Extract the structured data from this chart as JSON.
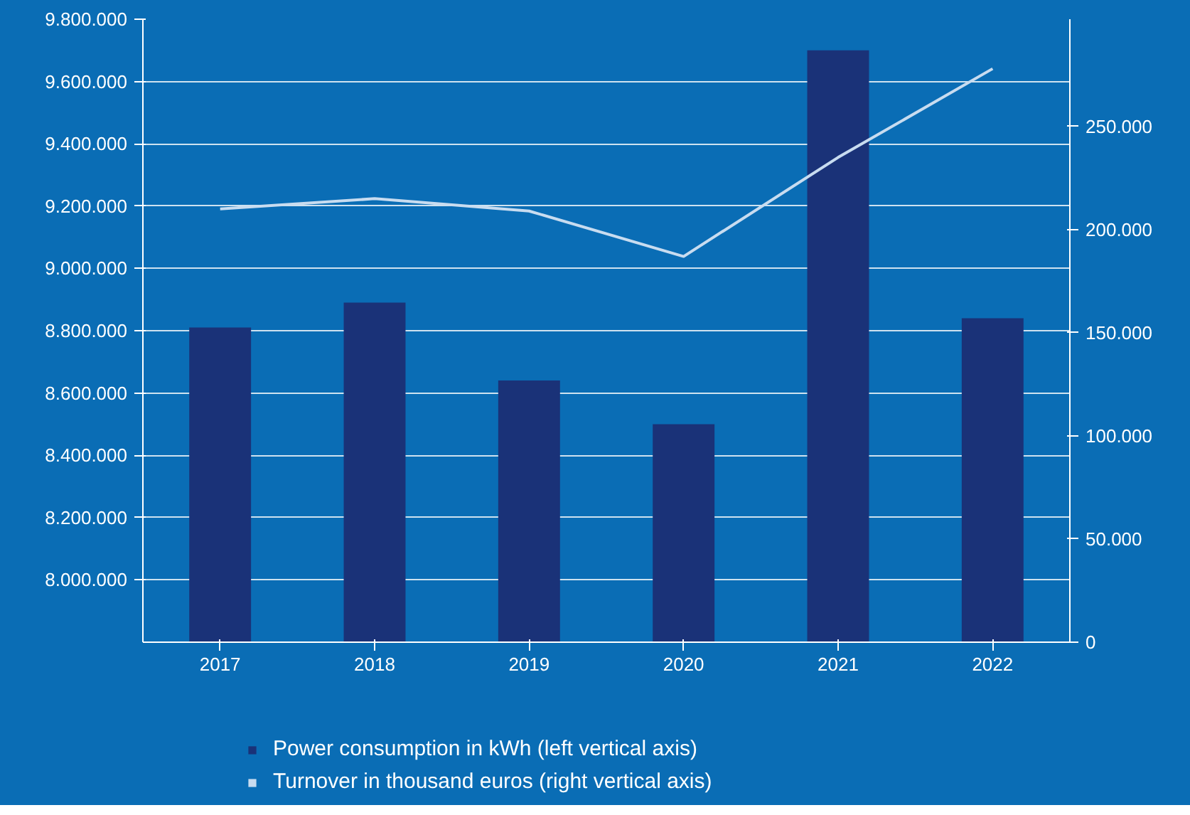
{
  "chart_data": {
    "type": "bar",
    "categories": [
      "2017",
      "2018",
      "2019",
      "2020",
      "2021",
      "2022"
    ],
    "series": [
      {
        "name": "Power consumption in kWh (left vertical axis)",
        "color": "#1a3278",
        "values": [
          8810000,
          8890000,
          8640000,
          8500000,
          9700000,
          8840000
        ]
      },
      {
        "name": "Turnover in thousand euros (right vertical axis)",
        "type": "line",
        "axis": "y2",
        "color": "#c8dcf0",
        "values": [
          210000,
          215000,
          209000,
          187000,
          235000,
          278000
        ]
      }
    ],
    "ylim": [
      7800000,
      9800000
    ],
    "yticks": [
      {
        "value": 8000000,
        "label": "8.000.000"
      },
      {
        "value": 8200000,
        "label": "8.200.000"
      },
      {
        "value": 8400000,
        "label": "8.400.000"
      },
      {
        "value": 8600000,
        "label": "8.600.000"
      },
      {
        "value": 8800000,
        "label": "8.800.000"
      },
      {
        "value": 9000000,
        "label": "9.000.000"
      },
      {
        "value": 9200000,
        "label": "9.200.000"
      },
      {
        "value": 9400000,
        "label": "9.400.000"
      },
      {
        "value": 9600000,
        "label": "9.600.000"
      },
      {
        "value": 9800000,
        "label": "9.800.000"
      }
    ],
    "y2lim": [
      0,
      302000
    ],
    "y2ticks": [
      0,
      {
        "value": 50000,
        "label": "50.000"
      },
      {
        "value": 100000,
        "label": "100.000"
      },
      {
        "value": 150000,
        "label": "150.000"
      },
      {
        "value": 200000,
        "label": "200.000"
      },
      {
        "value": 250000,
        "label": "250.000"
      }
    ],
    "grid": "y",
    "legend": "bottom",
    "marker": "none",
    "line_style": "solid"
  }
}
